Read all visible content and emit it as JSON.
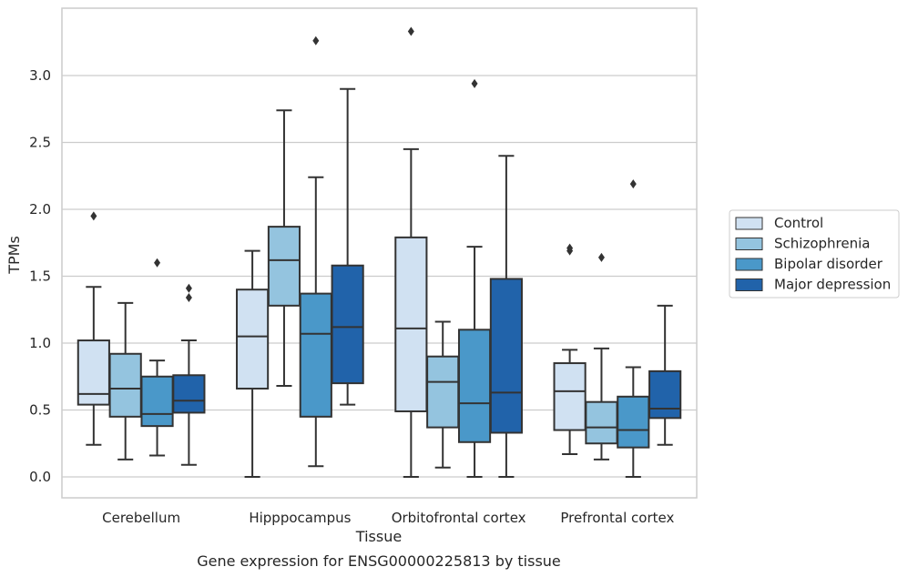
{
  "caption": "Gene expression for ENSG00000225813 by tissue",
  "chart_data": {
    "type": "box",
    "xlabel": "Tissue",
    "ylabel": "TPMs",
    "ylim": [
      -0.16,
      3.52
    ],
    "yticks": [
      0.0,
      0.5,
      1.0,
      1.5,
      2.0,
      2.5,
      3.0
    ],
    "ytick_labels": [
      "0.0",
      "0.5",
      "1.0",
      "1.5",
      "2.0",
      "2.5",
      "3.0"
    ],
    "grid": "horizontal",
    "legend_position": "right",
    "categories": [
      "Cerebellum",
      "Hipppocampus",
      "Orbitofrontal cortex",
      "Prefrontal cortex"
    ],
    "series": [
      {
        "name": "Control",
        "color": "#d0e1f2",
        "boxes": [
          {
            "whisker_low": 0.24,
            "q1": 0.54,
            "median": 0.62,
            "q3": 1.02,
            "whisker_high": 1.42,
            "outliers": [
              1.95
            ]
          },
          {
            "whisker_low": 0.0,
            "q1": 0.66,
            "median": 1.05,
            "q3": 1.4,
            "whisker_high": 1.69,
            "outliers": []
          },
          {
            "whisker_low": 0.0,
            "q1": 0.49,
            "median": 1.11,
            "q3": 1.79,
            "whisker_high": 2.45,
            "outliers": [
              3.33
            ]
          },
          {
            "whisker_low": 0.17,
            "q1": 0.35,
            "median": 0.64,
            "q3": 0.85,
            "whisker_high": 0.95,
            "outliers": [
              1.69,
              1.71
            ]
          }
        ]
      },
      {
        "name": "Schizophrenia",
        "color": "#94c4df",
        "boxes": [
          {
            "whisker_low": 0.13,
            "q1": 0.45,
            "median": 0.66,
            "q3": 0.92,
            "whisker_high": 1.3,
            "outliers": []
          },
          {
            "whisker_low": 0.68,
            "q1": 1.28,
            "median": 1.62,
            "q3": 1.87,
            "whisker_high": 2.74,
            "outliers": []
          },
          {
            "whisker_low": 0.07,
            "q1": 0.37,
            "median": 0.71,
            "q3": 0.9,
            "whisker_high": 1.16,
            "outliers": []
          },
          {
            "whisker_low": 0.13,
            "q1": 0.25,
            "median": 0.37,
            "q3": 0.56,
            "whisker_high": 0.96,
            "outliers": [
              1.64
            ]
          }
        ]
      },
      {
        "name": "Bipolar disorder",
        "color": "#4a98c9",
        "boxes": [
          {
            "whisker_low": 0.16,
            "q1": 0.38,
            "median": 0.47,
            "q3": 0.75,
            "whisker_high": 0.87,
            "outliers": [
              1.6
            ]
          },
          {
            "whisker_low": 0.08,
            "q1": 0.45,
            "median": 1.07,
            "q3": 1.37,
            "whisker_high": 2.24,
            "outliers": [
              3.26
            ]
          },
          {
            "whisker_low": 0.0,
            "q1": 0.26,
            "median": 0.55,
            "q3": 1.1,
            "whisker_high": 1.72,
            "outliers": [
              2.94
            ]
          },
          {
            "whisker_low": 0.0,
            "q1": 0.22,
            "median": 0.35,
            "q3": 0.6,
            "whisker_high": 0.82,
            "outliers": [
              2.19
            ]
          }
        ]
      },
      {
        "name": "Major depression",
        "color": "#2163aa",
        "boxes": [
          {
            "whisker_low": 0.09,
            "q1": 0.48,
            "median": 0.57,
            "q3": 0.76,
            "whisker_high": 1.02,
            "outliers": [
              1.34,
              1.41
            ]
          },
          {
            "whisker_low": 0.54,
            "q1": 0.7,
            "median": 1.12,
            "q3": 1.58,
            "whisker_high": 2.9,
            "outliers": []
          },
          {
            "whisker_low": 0.0,
            "q1": 0.33,
            "median": 0.63,
            "q3": 1.48,
            "whisker_high": 2.4,
            "outliers": []
          },
          {
            "whisker_low": 0.24,
            "q1": 0.44,
            "median": 0.51,
            "q3": 0.79,
            "whisker_high": 1.28,
            "outliers": []
          }
        ]
      }
    ]
  }
}
